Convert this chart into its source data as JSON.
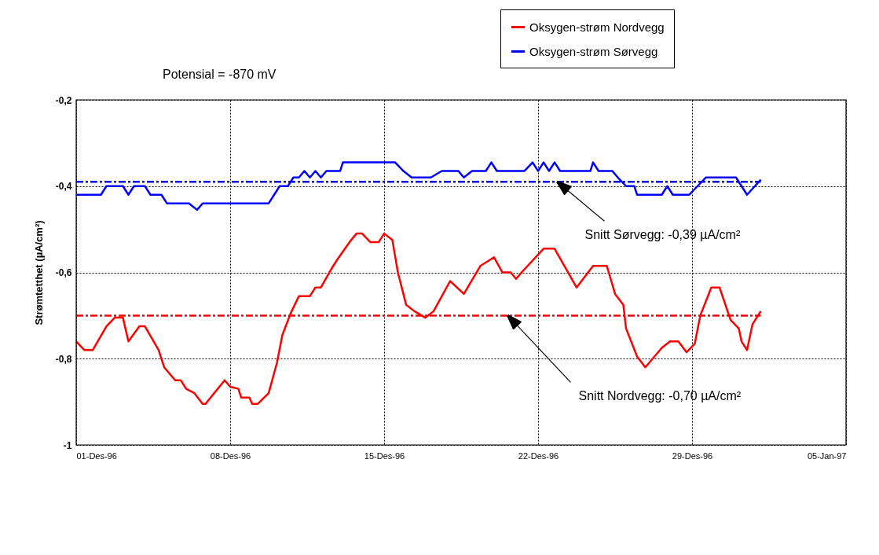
{
  "chart_data": {
    "type": "line",
    "ylabel": "Strømtetthet (µA/cm²)",
    "xlim": [
      "1996-12-01",
      "1997-01-05"
    ],
    "xticks": [
      {
        "value": "1996-12-01",
        "label": "01-Des-96"
      },
      {
        "value": "1996-12-08",
        "label": "08-Des-96"
      },
      {
        "value": "1996-12-15",
        "label": "15-Des-96"
      },
      {
        "value": "1996-12-22",
        "label": "22-Des-96"
      },
      {
        "value": "1996-12-29",
        "label": "29-Des-96"
      },
      {
        "value": "1997-01-05",
        "label": "05-Jan-97"
      }
    ],
    "ylim": [
      -1,
      -0.2
    ],
    "yticks": [
      {
        "value": -1,
        "label": "-1"
      },
      {
        "value": -0.8,
        "label": "-0,8"
      },
      {
        "value": -0.6,
        "label": "-0,6"
      },
      {
        "value": -0.4,
        "label": "-0,4"
      },
      {
        "value": -0.2,
        "label": "-0,2"
      }
    ],
    "grid": true,
    "legend": "top right",
    "marker": "none",
    "line_style": "solid",
    "annotations": [
      "Potensial = -870 mV",
      {
        "text": "Snitt Sørvegg:  -0,39 µA/cm²",
        "x": "1996-12-22T21:00",
        "y": -0.39
      },
      {
        "text": "Snitt Nordvegg:  -0,70 µA/cm²",
        "x": "1996-12-20T15:00",
        "y": -0.7
      }
    ],
    "ref_lines": [
      {
        "axis": "y",
        "value": -0.39,
        "color": "#0000ff",
        "line_style": "dashed"
      },
      {
        "axis": "y",
        "value": -0.7,
        "color": "#ff0000",
        "line_style": "dashed"
      }
    ],
    "series": [
      {
        "name": "Oksygen-strøm Nordvegg",
        "color": "#ff0000",
        "x": [
          "1996-12-01T00:00",
          "1996-12-01T09:00",
          "1996-12-01T18:00",
          "1996-12-02T09:00",
          "1996-12-02T18:00",
          "1996-12-03T03:00",
          "1996-12-03T09:00",
          "1996-12-03T21:00",
          "1996-12-04T03:00",
          "1996-12-04T18:00",
          "1996-12-05T00:00",
          "1996-12-05T12:00",
          "1996-12-05T18:00",
          "1996-12-06T00:00",
          "1996-12-06T09:00",
          "1996-12-06T18:00",
          "1996-12-06T21:00",
          "1996-12-07T18:00",
          "1996-12-08T00:00",
          "1996-12-08T09:00",
          "1996-12-08T12:00",
          "1996-12-08T21:00",
          "1996-12-09T00:00",
          "1996-12-09T06:00",
          "1996-12-09T18:00",
          "1996-12-10T03:00",
          "1996-12-10T09:00",
          "1996-12-10T18:00",
          "1996-12-11T03:00",
          "1996-12-11T15:00",
          "1996-12-11T21:00",
          "1996-12-12T03:00",
          "1996-12-12T15:00",
          "1996-12-12T21:00",
          "1996-12-13T12:00",
          "1996-12-13T18:00",
          "1996-12-14T00:00",
          "1996-12-14T09:00",
          "1996-12-14T18:00",
          "1996-12-15T00:00",
          "1996-12-15T09:00",
          "1996-12-15T15:00",
          "1996-12-16T00:00",
          "1996-12-16T09:00",
          "1996-12-16T21:00",
          "1996-12-17T06:00",
          "1996-12-18T00:00",
          "1996-12-18T15:00",
          "1996-12-19T09:00",
          "1996-12-20T00:00",
          "1996-12-20T09:00",
          "1996-12-20T18:00",
          "1996-12-21T00:00",
          "1996-12-21T06:00",
          "1996-12-22T06:00",
          "1996-12-22T18:00",
          "1996-12-23T18:00",
          "1996-12-24T12:00",
          "1996-12-25T03:00",
          "1996-12-25T12:00",
          "1996-12-25T21:00",
          "1996-12-26T00:00",
          "1996-12-26T12:00",
          "1996-12-26T21:00",
          "1996-12-27T15:00",
          "1996-12-28T00:00",
          "1996-12-28T09:00",
          "1996-12-28T18:00",
          "1996-12-29T03:00",
          "1996-12-29T09:00",
          "1996-12-29T21:00",
          "1996-12-30T06:00",
          "1996-12-30T18:00",
          "1996-12-31T03:00",
          "1996-12-31T06:00",
          "1996-12-31T12:00",
          "1996-12-31T18:00",
          "1997-01-01T03:00"
        ],
        "values": [
          -0.76,
          -0.78,
          -0.78,
          -0.725,
          -0.705,
          -0.705,
          -0.76,
          -0.725,
          -0.725,
          -0.78,
          -0.82,
          -0.85,
          -0.85,
          -0.87,
          -0.88,
          -0.905,
          -0.905,
          -0.85,
          -0.865,
          -0.87,
          -0.89,
          -0.89,
          -0.905,
          -0.905,
          -0.88,
          -0.81,
          -0.745,
          -0.695,
          -0.655,
          -0.655,
          -0.635,
          -0.635,
          -0.59,
          -0.57,
          -0.525,
          -0.51,
          -0.51,
          -0.53,
          -0.53,
          -0.51,
          -0.525,
          -0.6,
          -0.675,
          -0.69,
          -0.705,
          -0.69,
          -0.62,
          -0.65,
          -0.585,
          -0.565,
          -0.6,
          -0.6,
          -0.615,
          -0.6,
          -0.545,
          -0.545,
          -0.635,
          -0.585,
          -0.585,
          -0.65,
          -0.675,
          -0.73,
          -0.795,
          -0.82,
          -0.775,
          -0.76,
          -0.76,
          -0.785,
          -0.765,
          -0.7,
          -0.635,
          -0.635,
          -0.71,
          -0.73,
          -0.76,
          -0.78,
          -0.72,
          -0.69
        ]
      },
      {
        "name": "Oksygen-strøm Sørvegg",
        "color": "#0000ff",
        "x": [
          "1996-12-01T00:00",
          "1996-12-02T03:00",
          "1996-12-02T09:00",
          "1996-12-03T03:00",
          "1996-12-03T09:00",
          "1996-12-03T15:00",
          "1996-12-04T03:00",
          "1996-12-04T09:00",
          "1996-12-04T21:00",
          "1996-12-05T03:00",
          "1996-12-06T03:00",
          "1996-12-06T12:00",
          "1996-12-06T18:00",
          "1996-12-09T18:00",
          "1996-12-10T06:00",
          "1996-12-10T15:00",
          "1996-12-10T21:00",
          "1996-12-11T03:00",
          "1996-12-11T09:00",
          "1996-12-11T15:00",
          "1996-12-11T21:00",
          "1996-12-12T03:00",
          "1996-12-12T09:00",
          "1996-12-13T00:00",
          "1996-12-13T03:00",
          "1996-12-15T12:00",
          "1996-12-15T21:00",
          "1996-12-16T06:00",
          "1996-12-17T03:00",
          "1996-12-17T15:00",
          "1996-12-18T09:00",
          "1996-12-18T15:00",
          "1996-12-19T00:00",
          "1996-12-19T15:00",
          "1996-12-19T21:00",
          "1996-12-20T03:00",
          "1996-12-21T09:00",
          "1996-12-21T18:00",
          "1996-12-22T00:00",
          "1996-12-22T06:00",
          "1996-12-22T12:00",
          "1996-12-22T18:00",
          "1996-12-23T00:00",
          "1996-12-24T09:00",
          "1996-12-24T12:00",
          "1996-12-24T18:00",
          "1996-12-25T09:00",
          "1996-12-25T15:00",
          "1996-12-26T00:00",
          "1996-12-26T09:00",
          "1996-12-26T12:00",
          "1996-12-27T15:00",
          "1996-12-27T21:00",
          "1996-12-28T03:00",
          "1996-12-28T21:00",
          "1996-12-29T06:00",
          "1996-12-29T15:00",
          "1996-12-31T00:00",
          "1996-12-31T12:00",
          "1997-01-01T03:00"
        ],
        "values": [
          -0.42,
          -0.42,
          -0.4,
          -0.4,
          -0.42,
          -0.4,
          -0.4,
          -0.42,
          -0.42,
          -0.44,
          -0.44,
          -0.455,
          -0.44,
          -0.44,
          -0.4,
          -0.4,
          -0.38,
          -0.38,
          -0.365,
          -0.38,
          -0.365,
          -0.38,
          -0.365,
          -0.365,
          -0.345,
          -0.345,
          -0.365,
          -0.38,
          -0.38,
          -0.365,
          -0.365,
          -0.38,
          -0.365,
          -0.365,
          -0.345,
          -0.365,
          -0.365,
          -0.345,
          -0.365,
          -0.345,
          -0.365,
          -0.345,
          -0.365,
          -0.365,
          -0.345,
          -0.365,
          -0.365,
          -0.38,
          -0.4,
          -0.4,
          -0.42,
          -0.42,
          -0.4,
          -0.42,
          -0.42,
          -0.4,
          -0.38,
          -0.38,
          -0.42,
          -0.385
        ]
      }
    ]
  }
}
